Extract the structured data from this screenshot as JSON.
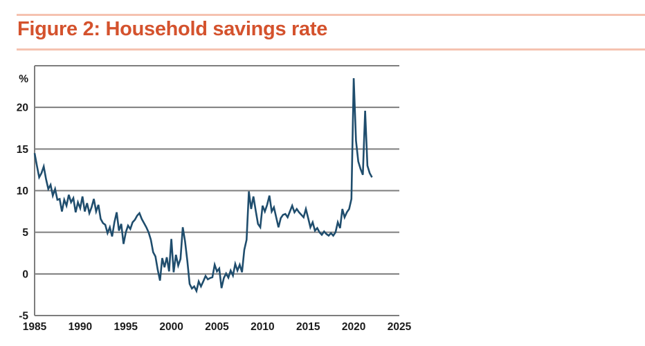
{
  "header": {
    "title": "Figure 2: Household savings rate"
  },
  "colors": {
    "title": "#d4522d",
    "rule": "#f5c2b0",
    "grid": "#7d7d7d",
    "line": "#1f4d6d",
    "label": "#1a1a1a"
  },
  "chart_data": {
    "type": "line",
    "title": "Figure 2: Household savings rate",
    "ylabel": "%",
    "xlabel": "",
    "grid": "horizontal",
    "legend": "none",
    "xlim": [
      1985,
      2025
    ],
    "ylim": [
      -5,
      25
    ],
    "x_ticks": [
      "1985",
      "1990",
      "1995",
      "2000",
      "2005",
      "2010",
      "2015",
      "2020",
      "2025"
    ],
    "x_tick_years": [
      1985,
      1990,
      1995,
      2000,
      2005,
      2010,
      2015,
      2020,
      2025
    ],
    "y_ticks": [
      20,
      15,
      10,
      5,
      0,
      -5
    ],
    "y_gridlines": [
      25,
      20,
      15,
      10,
      5,
      0,
      -5
    ],
    "series_name": "Household savings rate (%)",
    "x_start": 1985.0,
    "x_step": 0.25,
    "values": [
      14.5,
      13.0,
      11.6,
      12.1,
      12.9,
      11.4,
      10.2,
      10.7,
      9.4,
      10.2,
      8.9,
      9.0,
      7.5,
      8.9,
      8.2,
      9.5,
      8.6,
      9.1,
      7.4,
      8.6,
      7.9,
      9.3,
      7.5,
      8.5,
      7.3,
      8.0,
      9.0,
      7.5,
      8.3,
      6.6,
      6.1,
      5.9,
      4.9,
      5.6,
      4.5,
      6.2,
      7.4,
      5.2,
      6.0,
      3.6,
      5.0,
      5.8,
      5.4,
      6.2,
      6.5,
      7.0,
      7.3,
      6.6,
      6.1,
      5.6,
      5.0,
      4.1,
      2.6,
      2.1,
      0.5,
      -0.8,
      1.9,
      0.8,
      2.0,
      0.3,
      4.2,
      0.2,
      2.3,
      1.0,
      1.8,
      5.6,
      3.9,
      1.55,
      -1.2,
      -1.75,
      -1.5,
      -2.05,
      -0.9,
      -1.5,
      -0.9,
      -0.25,
      -0.65,
      -0.5,
      -0.4,
      1.1,
      0.3,
      0.65,
      -1.7,
      -0.5,
      0.05,
      -0.45,
      0.4,
      -0.2,
      1.2,
      0.4,
      1.1,
      0.2,
      2.9,
      4.1,
      9.9,
      7.8,
      9.3,
      7.6,
      6.0,
      5.6,
      8.2,
      7.5,
      8.3,
      9.4,
      7.5,
      8.0,
      6.8,
      5.6,
      6.7,
      7.1,
      7.2,
      6.8,
      7.5,
      8.2,
      7.4,
      7.8,
      7.4,
      7.1,
      6.8,
      7.8,
      6.7,
      5.6,
      6.2,
      5.2,
      5.5,
      5.0,
      4.7,
      5.1,
      4.8,
      4.6,
      4.9,
      4.6,
      5.0,
      6.2,
      5.5,
      7.8,
      6.8,
      7.4,
      7.8,
      9.0,
      23.5,
      16.0,
      13.5,
      12.6,
      11.9,
      19.6,
      13.0,
      12.1,
      11.6
    ]
  }
}
